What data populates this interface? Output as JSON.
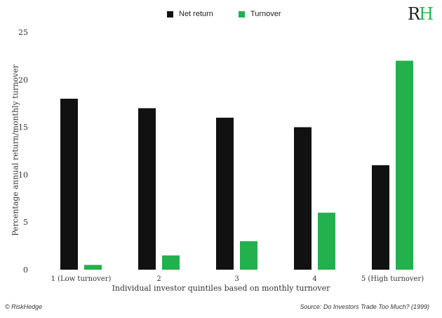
{
  "logo": {
    "text": "RH"
  },
  "legend": {
    "items": [
      {
        "label": "Net return",
        "color": "#111111"
      },
      {
        "label": "Turnover",
        "color": "#22b14c"
      }
    ]
  },
  "footer": {
    "copyright": "© RiskHedge",
    "source": "Source: Do Investors Trade Too Much? (1999)"
  },
  "chart_data": {
    "type": "bar",
    "title": "",
    "xlabel": "Individual investor quintiles based on monthly turnover",
    "ylabel": "Percentage annual return/monthly turnover",
    "ylim": [
      0,
      25
    ],
    "yticks": [
      0,
      5,
      10,
      15,
      20,
      25
    ],
    "grid": false,
    "legend_position": "top-center",
    "categories": [
      "1 (Low turnover)",
      "2",
      "3",
      "4",
      "5 (High turnover)"
    ],
    "series": [
      {
        "name": "Net return",
        "color": "#111111",
        "values": [
          18,
          17,
          16,
          15,
          11
        ]
      },
      {
        "name": "Turnover",
        "color": "#22b14c",
        "values": [
          0.5,
          1.5,
          3,
          6,
          22
        ]
      }
    ]
  }
}
